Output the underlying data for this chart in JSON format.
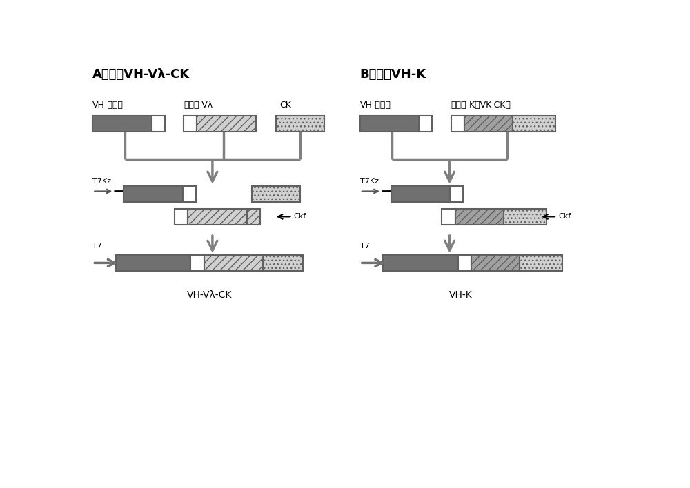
{
  "title_A": "A）构建VH-Vλ-CK",
  "title_B": "B）构建VH-K",
  "label_A1": "VH-连接肽",
  "label_A2": "连接肽-Vλ",
  "label_A3": "CK",
  "label_B1": "VH-连接肽",
  "label_B2": "连接肽-K（VK-CK）",
  "label_T7Kz": "T7Kz",
  "label_T7": "T7",
  "label_Ckf": "Ckf",
  "label_final_A": "VH-Vλ-CK",
  "label_final_B": "VH-K",
  "bg_color": "#ffffff",
  "dark_gray": "#707070",
  "mid_gray": "#a0a0a0",
  "light_gray": "#d0d0d0",
  "line_color": "#808080",
  "line_width": 2.5
}
